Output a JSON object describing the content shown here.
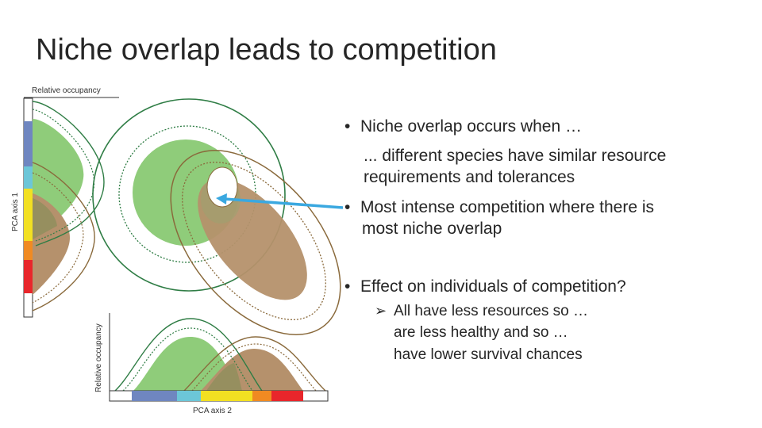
{
  "title": "Niche overlap leads to competition",
  "figure": {
    "y_axis_top_label": "Relative occupancy",
    "y_axis_side_label": "PCA axis 1",
    "x_axis_side_label": "Relative occupancy",
    "x_axis_bottom_label": "PCA axis 2",
    "colors": {
      "species_a": "#8fcc7a",
      "species_b": "#b5916c",
      "green_line": "#2f7d45",
      "brown_line": "#8a6a3c",
      "arrow": "#3aa8e0",
      "band": [
        "#6f86c0",
        "#6cc6d8",
        "#f2e022",
        "#f08a22",
        "#e8262b"
      ]
    }
  },
  "bullets": [
    {
      "text": "Niche overlap occurs when …"
    },
    {
      "text": "... different species have similar resource"
    },
    {
      "text": "requirements and tolerances"
    },
    {
      "text": "Most intense competition where there is"
    },
    {
      "text": "most niche overlap"
    },
    {
      "text": "Effect on individuals of competition?"
    },
    {
      "text": "All have less resources so …"
    },
    {
      "text": "are less healthy and so …"
    },
    {
      "text": "have lower survival chances"
    }
  ]
}
